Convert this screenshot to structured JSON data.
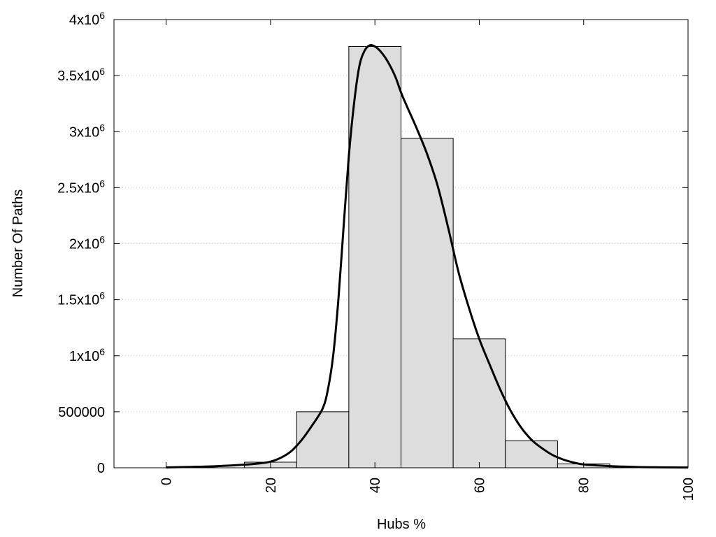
{
  "chart_data": {
    "type": "bar",
    "title": "",
    "xlabel": "Hubs %",
    "ylabel": "Number Of Paths",
    "xlim": [
      -10,
      100
    ],
    "ylim": [
      0,
      4000000
    ],
    "grid": "horizontal-dotted",
    "colors": {
      "bar_fill": "#dddddd",
      "bar_stroke": "#000000",
      "line": "#000000",
      "grid": "#c8c8c8"
    },
    "x_ticks": [
      {
        "value": 0,
        "label": "0"
      },
      {
        "value": 20,
        "label": "20"
      },
      {
        "value": 40,
        "label": "40"
      },
      {
        "value": 60,
        "label": "60"
      },
      {
        "value": 80,
        "label": "80"
      },
      {
        "value": 100,
        "label": "100"
      }
    ],
    "y_ticks": [
      {
        "value": 0,
        "label": "0",
        "exp": ""
      },
      {
        "value": 500000,
        "label": "500000",
        "exp": ""
      },
      {
        "value": 1000000,
        "label": "1x10",
        "exp": "6"
      },
      {
        "value": 1500000,
        "label": "1.5x10",
        "exp": "6"
      },
      {
        "value": 2000000,
        "label": "2x10",
        "exp": "6"
      },
      {
        "value": 2500000,
        "label": "2.5x10",
        "exp": "6"
      },
      {
        "value": 3000000,
        "label": "3x10",
        "exp": "6"
      },
      {
        "value": 3500000,
        "label": "3.5x10",
        "exp": "6"
      },
      {
        "value": 4000000,
        "label": "4x10",
        "exp": "6"
      }
    ],
    "bars": [
      {
        "x0": 15,
        "x1": 25,
        "value": 50000
      },
      {
        "x0": 25,
        "x1": 35,
        "value": 500000
      },
      {
        "x0": 35,
        "x1": 45,
        "value": 3760000
      },
      {
        "x0": 45,
        "x1": 55,
        "value": 2940000
      },
      {
        "x0": 55,
        "x1": 65,
        "value": 1150000
      },
      {
        "x0": 65,
        "x1": 75,
        "value": 240000
      },
      {
        "x0": 75,
        "x1": 85,
        "value": 35000
      }
    ],
    "density_curve": {
      "x": [
        0,
        5,
        10,
        15,
        18,
        20,
        22,
        24,
        26,
        28,
        30,
        31,
        32,
        33,
        34,
        35,
        36,
        37,
        38,
        39,
        40,
        41,
        42,
        43,
        44,
        45,
        46,
        48,
        50,
        52,
        54,
        56,
        58,
        60,
        62,
        64,
        66,
        68,
        70,
        72,
        74,
        76,
        78,
        80,
        85,
        90,
        95,
        100
      ],
      "y": [
        3000,
        8000,
        15000,
        28000,
        40000,
        55000,
        90000,
        150000,
        250000,
        380000,
        530000,
        700000,
        1000000,
        1500000,
        2150000,
        2780000,
        3250000,
        3580000,
        3720000,
        3770000,
        3760000,
        3720000,
        3660000,
        3580000,
        3480000,
        3350000,
        3240000,
        3030000,
        2800000,
        2520000,
        2150000,
        1750000,
        1430000,
        1150000,
        920000,
        700000,
        510000,
        360000,
        250000,
        175000,
        115000,
        75000,
        48000,
        30000,
        15000,
        7000,
        4000,
        2000
      ]
    }
  }
}
